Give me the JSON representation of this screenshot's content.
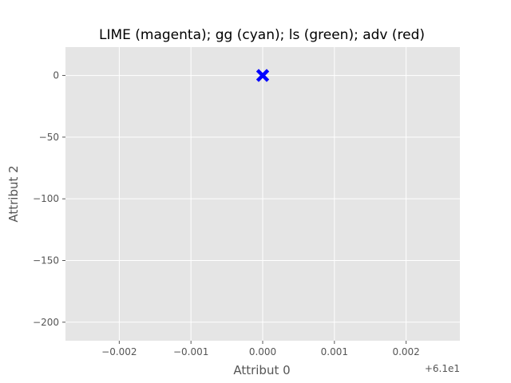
{
  "chart_data": {
    "type": "scatter",
    "title": "LIME (magenta); gg (cyan); ls (green); adv (red)",
    "xlabel": "Attribut 0",
    "ylabel": "Attribut 2",
    "x_offset_label": "+6.1e1",
    "xlim": [
      -0.00275,
      0.00275
    ],
    "ylim": [
      -215,
      23
    ],
    "x_ticks": [
      -0.002,
      -0.001,
      0.0,
      0.001,
      0.002
    ],
    "x_tick_labels": [
      "−0.002",
      "−0.001",
      "0.000",
      "0.001",
      "0.002"
    ],
    "y_ticks": [
      0,
      -50,
      -100,
      -150,
      -200
    ],
    "y_tick_labels": [
      "0",
      "−50",
      "−100",
      "−150",
      "−200"
    ],
    "grid": true,
    "points": [
      {
        "x": 0.0,
        "y": 0.0,
        "color": "#0000ff",
        "marker": "X"
      }
    ]
  },
  "colors": {
    "plot_background": "#e5e5e5",
    "grid": "#ffffff",
    "point": "#0000ff"
  }
}
